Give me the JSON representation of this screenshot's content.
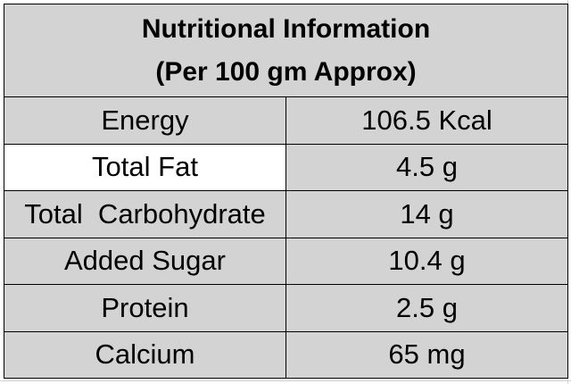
{
  "table": {
    "title_line1": "Nutritional Information",
    "title_line2": "(Per 100 gm Approx)",
    "rows": [
      {
        "label": "Energy",
        "value": "106.5 Kcal"
      },
      {
        "label": "Total Fat",
        "value": "4.5 g"
      },
      {
        "label": "Total  Carbohydrate",
        "value": "14 g"
      },
      {
        "label": "Added Sugar",
        "value": "10.4 g"
      },
      {
        "label": "Protein",
        "value": "2.5 g"
      },
      {
        "label": "Calcium",
        "value": "65 mg"
      }
    ],
    "colors": {
      "cell_fill": "#d3d3d3",
      "selected_cell_fill": "#ffffff",
      "border": "#000000",
      "text": "#000000"
    }
  }
}
